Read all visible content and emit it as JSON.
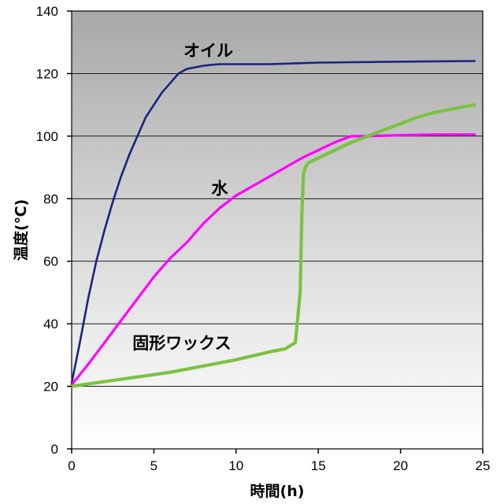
{
  "chart_data": {
    "type": "line",
    "title": "",
    "xlabel": "時間(h)",
    "ylabel": "温度(℃)",
    "xlim": [
      0,
      25
    ],
    "ylim": [
      0,
      140
    ],
    "x_ticks": [
      0,
      5,
      10,
      15,
      20,
      25
    ],
    "y_ticks": [
      0,
      20,
      40,
      60,
      80,
      100,
      120,
      140
    ],
    "grid": true,
    "background": "gradient-gray-to-white",
    "series": [
      {
        "name": "オイル",
        "color": "#1a237e",
        "x": [
          0,
          0.5,
          1,
          1.5,
          2,
          2.5,
          3,
          3.5,
          4,
          4.5,
          5,
          5.5,
          6,
          6.5,
          7,
          7.5,
          8,
          8.5,
          9,
          10,
          12,
          15,
          20,
          24.5
        ],
        "y": [
          21,
          34,
          48,
          60,
          70,
          79,
          87,
          94,
          100,
          106,
          110,
          114,
          117,
          120,
          121.5,
          122,
          122.5,
          122.8,
          123,
          123,
          123,
          123.5,
          123.8,
          124
        ]
      },
      {
        "name": "水",
        "color": "#ff00ff",
        "x": [
          0,
          1,
          2,
          3,
          4,
          5,
          6,
          7,
          8,
          9,
          10,
          11,
          12,
          13,
          14,
          15,
          16,
          17,
          18,
          20,
          22,
          24.5
        ],
        "y": [
          20.5,
          27,
          34,
          41,
          48,
          55,
          61,
          66,
          72,
          77,
          81,
          84,
          87,
          90,
          93,
          95.5,
          98,
          100,
          100,
          100.3,
          100.5,
          100.5
        ]
      },
      {
        "name": "固形ワックス",
        "color": "#7cc242",
        "x": [
          0,
          2,
          4,
          6,
          8,
          10,
          12,
          13,
          13.6,
          13.9,
          14.0,
          14.1,
          14.2,
          14.4,
          15,
          16,
          17,
          18,
          19,
          20,
          21,
          22,
          23,
          24,
          24.5
        ],
        "y": [
          20,
          21.5,
          23,
          24.5,
          26.5,
          28.5,
          31,
          32,
          34,
          50,
          75,
          88,
          90,
          91.5,
          93,
          95.5,
          98,
          100,
          102,
          104,
          106,
          107.5,
          108.5,
          109.5,
          110
        ]
      }
    ],
    "annotations": [
      {
        "text": "オイル",
        "series": 0
      },
      {
        "text": "水",
        "series": 1
      },
      {
        "text": "固形ワックス",
        "series": 2
      }
    ]
  }
}
